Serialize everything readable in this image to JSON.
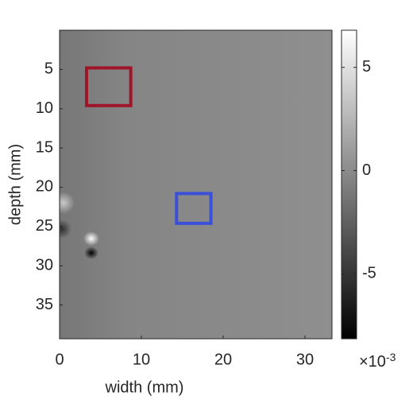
{
  "chart_data": {
    "type": "image",
    "xlabel": "width (mm)",
    "ylabel": "depth (mm)",
    "xlim": [
      0,
      33.3
    ],
    "ylim": [
      0,
      39.3
    ],
    "ydir": "reverse",
    "xticks": [
      0,
      10,
      20,
      30
    ],
    "yticks": [
      5,
      10,
      15,
      20,
      25,
      30,
      35
    ],
    "colormap": "gray",
    "colorbar": {
      "clim": [
        -8.15,
        6.8
      ],
      "ticks": [
        -5,
        0,
        5
      ],
      "multiplier": {
        "base": "×10",
        "exponent": "-3"
      }
    },
    "rectangles": [
      {
        "color": "#a0152a",
        "x": [
          3.3,
          8.7
        ],
        "y": [
          4.8,
          9.6
        ]
      },
      {
        "color": "#3b50d8",
        "x": [
          14.3,
          18.5
        ],
        "y": [
          20.8,
          24.6
        ]
      }
    ]
  }
}
